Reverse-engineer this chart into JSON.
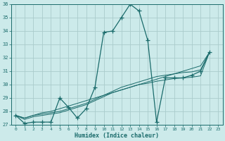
{
  "xlabel": "Humidex (Indice chaleur)",
  "bg_color": "#cceaea",
  "grid_color": "#aacccc",
  "line_color": "#1a6b6b",
  "xlim": [
    -0.5,
    23.5
  ],
  "ylim": [
    27,
    36
  ],
  "xticks": [
    0,
    1,
    2,
    3,
    4,
    5,
    6,
    7,
    8,
    9,
    10,
    11,
    12,
    13,
    14,
    15,
    16,
    17,
    18,
    19,
    20,
    21,
    22,
    23
  ],
  "yticks": [
    27,
    28,
    29,
    30,
    31,
    32,
    33,
    34,
    35,
    36
  ],
  "series_main": [
    27.7,
    27.1,
    27.2,
    27.2,
    27.2,
    29.0,
    28.3,
    27.5,
    28.2,
    29.8,
    33.9,
    34.0,
    35.0,
    36.0,
    35.5,
    33.3,
    27.2,
    30.5,
    30.5,
    30.5,
    30.7,
    31.0,
    32.4
  ],
  "series_line1": [
    27.7,
    27.5,
    27.7,
    27.9,
    28.0,
    28.2,
    28.4,
    28.6,
    28.8,
    29.0,
    29.2,
    29.4,
    29.6,
    29.8,
    30.0,
    30.2,
    30.4,
    30.6,
    30.8,
    31.0,
    31.2,
    31.4,
    32.4
  ],
  "series_line2": [
    27.7,
    27.5,
    27.7,
    27.8,
    27.9,
    28.0,
    28.2,
    28.4,
    28.6,
    28.9,
    29.2,
    29.5,
    29.8,
    30.0,
    30.2,
    30.4,
    30.6,
    30.7,
    30.8,
    30.9,
    30.95,
    31.1,
    32.4
  ],
  "series_line3": [
    27.7,
    27.4,
    27.6,
    27.7,
    27.8,
    27.9,
    28.1,
    28.3,
    28.5,
    28.8,
    29.1,
    29.4,
    29.6,
    29.8,
    30.0,
    30.1,
    30.25,
    30.35,
    30.45,
    30.5,
    30.55,
    30.65,
    32.4
  ]
}
